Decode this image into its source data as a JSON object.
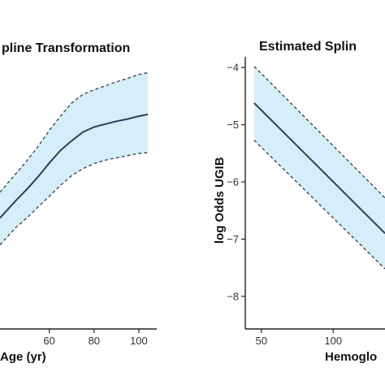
{
  "chart_data": [
    {
      "type": "line",
      "title": "pline Transformation",
      "xlabel": "Age (yr)",
      "ylabel": "",
      "xlim": [
        38,
        108
      ],
      "ylim": [
        -8.5,
        -3.7
      ],
      "xticks": [
        60,
        80,
        100
      ],
      "x": [
        38,
        45,
        50,
        55,
        60,
        65,
        70,
        75,
        80,
        85,
        90,
        95,
        100,
        104
      ],
      "series": [
        {
          "role": "estimate",
          "values": [
            -6.63,
            -6.33,
            -6.13,
            -5.91,
            -5.67,
            -5.45,
            -5.28,
            -5.13,
            -5.04,
            -4.99,
            -4.94,
            -4.9,
            -4.85,
            -4.82
          ]
        },
        {
          "role": "upper",
          "values": [
            -6.18,
            -5.86,
            -5.63,
            -5.38,
            -5.1,
            -4.85,
            -4.62,
            -4.47,
            -4.39,
            -4.32,
            -4.25,
            -4.19,
            -4.12,
            -4.09
          ]
        },
        {
          "role": "lower",
          "values": [
            -7.1,
            -6.8,
            -6.63,
            -6.44,
            -6.25,
            -6.06,
            -5.89,
            -5.77,
            -5.68,
            -5.62,
            -5.58,
            -5.54,
            -5.5,
            -5.49
          ]
        }
      ],
      "band_color": "#d6eefa",
      "line_color": "#2c3e5c",
      "grid": false
    },
    {
      "type": "line",
      "title": "Estimated Splin",
      "xlabel": "Hemoglo",
      "ylabel": "log Odds UGIB",
      "xlim": [
        40,
        136
      ],
      "ylim": [
        -8.5,
        -3.7
      ],
      "yticks": [
        -4,
        -5,
        -6,
        -7,
        -8
      ],
      "xticks": [
        50,
        100
      ],
      "x": [
        45,
        136
      ],
      "series": [
        {
          "role": "estimate",
          "values": [
            -4.62,
            -6.9
          ]
        },
        {
          "role": "upper",
          "values": [
            -3.98,
            -6.28
          ]
        },
        {
          "role": "lower",
          "values": [
            -5.27,
            -7.52
          ]
        }
      ],
      "band_color": "#d6eefa",
      "line_color": "#2c3e5c",
      "grid": false
    }
  ]
}
